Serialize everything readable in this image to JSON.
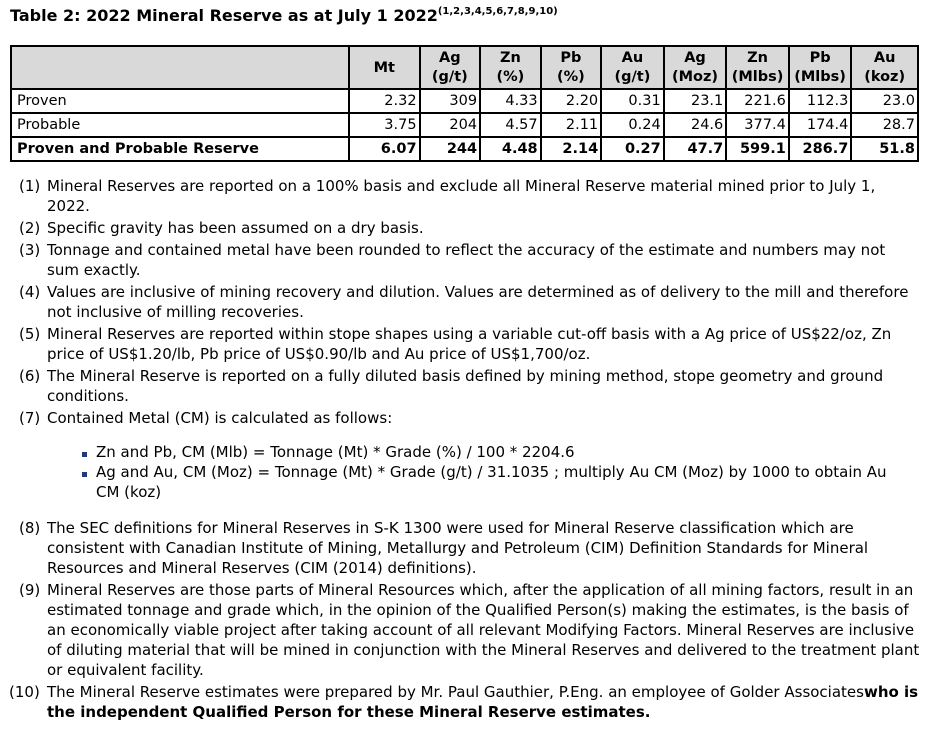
{
  "title": {
    "text": "Table 2: 2022 Mineral Reserve as at July 1 2022",
    "superscript": "(1,2,3,4,5,6,7,8,9,10)"
  },
  "table": {
    "headers": [
      {
        "line1": "",
        "line2": ""
      },
      {
        "line1": "Mt",
        "line2": ""
      },
      {
        "line1": "Ag",
        "line2": "(g/t)"
      },
      {
        "line1": "Zn",
        "line2": "(%)"
      },
      {
        "line1": "Pb",
        "line2": "(%)"
      },
      {
        "line1": "Au",
        "line2": "(g/t)"
      },
      {
        "line1": "Ag",
        "line2": "(Moz)"
      },
      {
        "line1": "Zn",
        "line2": "(Mlbs)"
      },
      {
        "line1": "Pb",
        "line2": "(Mlbs)"
      },
      {
        "line1": "Au",
        "line2": "(koz)"
      }
    ],
    "rows": [
      {
        "label": "Proven",
        "values": [
          "2.32",
          "309",
          "4.33",
          "2.20",
          "0.31",
          "23.1",
          "221.6",
          "112.3",
          "23.0"
        ]
      },
      {
        "label": "Probable",
        "values": [
          "3.75",
          "204",
          "4.57",
          "2.11",
          "0.24",
          "24.6",
          "377.4",
          "174.4",
          "28.7"
        ]
      },
      {
        "label": "Proven and Probable Reserve",
        "values": [
          "6.07",
          "244",
          "4.48",
          "2.14",
          "0.27",
          "47.7",
          "599.1",
          "286.7",
          "51.8"
        ]
      }
    ]
  },
  "notes": [
    {
      "num": "(1)",
      "text": "Mineral Reserves are reported on a 100% basis and exclude all Mineral Reserve material mined prior to July 1, 2022."
    },
    {
      "num": "(2)",
      "text": "Specific gravity has been assumed on a dry basis."
    },
    {
      "num": "(3)",
      "text": "Tonnage and contained metal have been rounded to reflect the accuracy of the estimate and numbers may not sum exactly."
    },
    {
      "num": "(4)",
      "text": "Values are inclusive of mining recovery and dilution. Values are determined as of delivery to the mill and therefore not inclusive of milling recoveries."
    },
    {
      "num": "(5)",
      "text": "Mineral Reserves are reported within stope shapes using a variable cut-off basis with a Ag price of US$22/oz, Zn price of US$1.20/lb, Pb price of US$0.90/lb and Au price of US$1,700/oz."
    },
    {
      "num": "(6)",
      "text": "The Mineral Reserve is reported on a fully diluted basis defined by mining method, stope geometry and ground conditions."
    },
    {
      "num": "(7)",
      "text": "Contained Metal (CM) is calculated as follows:"
    },
    {
      "num": "(8)",
      "text": "The SEC definitions for Mineral Reserves in S-K 1300 were used for Mineral Reserve classification which are consistent with Canadian Institute of Mining, Metallurgy and Petroleum (CIM) Definition Standards for Mineral Resources and Mineral Reserves (CIM (2014) definitions)."
    },
    {
      "num": "(9)",
      "text": "Mineral Reserves are those parts of Mineral Resources which, after the application of all mining factors, result in an estimated tonnage and grade which, in the opinion of the Qualified Person(s) making the estimates, is the basis of an economically viable project after taking account of all relevant Modifying Factors. Mineral Reserves are inclusive of diluting material that will be mined in conjunction with the Mineral Reserves and delivered to the treatment plant or equivalent facility."
    },
    {
      "num": "(10)",
      "text": "The Mineral Reserve estimates were prepared by Mr. Paul Gauthier, P.Eng. an employee of Golder Associates",
      "bold_text": "who is the independent Qualified Person for these Mineral Reserve estimates."
    }
  ],
  "bullets": [
    "Zn and Pb, CM (Mlb) = Tonnage (Mt) * Grade (%) / 100 * 2204.6",
    "Ag and Au, CM (Moz) = Tonnage (Mt) * Grade (g/t) / 31.1035 ; multiply Au CM (Moz) by 1000 to obtain Au CM (koz)"
  ],
  "colors": {
    "header_bg": "#d9d9d9",
    "bullet": "#1f3b7a"
  }
}
